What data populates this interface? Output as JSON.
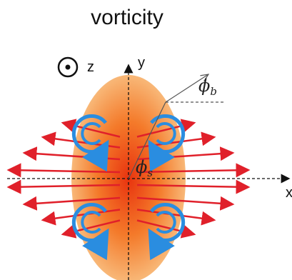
{
  "title": "vorticity",
  "labels": {
    "z": "z",
    "y": "y",
    "x": "x",
    "phi_b": {
      "symbol": "ϕ",
      "subscript": "b"
    },
    "phi_s": {
      "symbol": "ϕ",
      "subscript": "s"
    }
  }
}
